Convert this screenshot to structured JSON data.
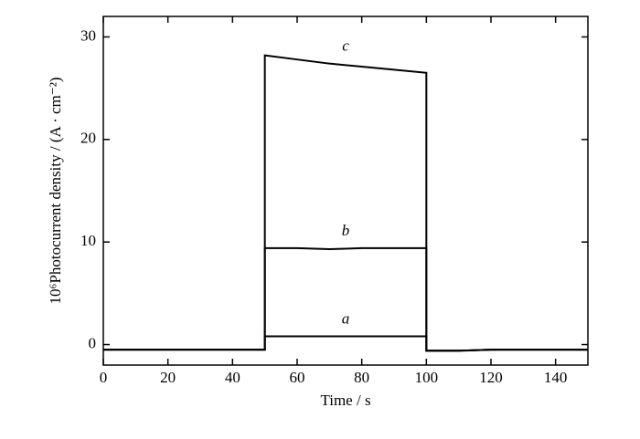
{
  "chart_data": {
    "type": "line",
    "x_label": "Time / s",
    "y_label": "10⁶Photocurrent density / (A · cm⁻²)",
    "x": [
      0,
      10,
      20,
      30,
      40,
      50,
      50,
      60,
      70,
      80,
      90,
      100,
      100,
      110,
      120,
      130,
      140,
      150
    ],
    "series": [
      {
        "name": "a",
        "color": "#000000",
        "values": [
          -0.5,
          -0.5,
          -0.5,
          -0.5,
          -0.5,
          -0.5,
          0.8,
          0.8,
          0.8,
          0.8,
          0.8,
          0.8,
          -0.6,
          -0.6,
          -0.5,
          -0.5,
          -0.5,
          -0.5
        ]
      },
      {
        "name": "b",
        "color": "#000000",
        "values": [
          -0.5,
          -0.5,
          -0.5,
          -0.5,
          -0.5,
          -0.5,
          9.4,
          9.4,
          9.3,
          9.4,
          9.4,
          9.4,
          -0.6,
          -0.6,
          -0.5,
          -0.5,
          -0.5,
          -0.5
        ]
      },
      {
        "name": "c",
        "color": "#000000",
        "values": [
          -0.5,
          -0.5,
          -0.5,
          -0.5,
          -0.5,
          -0.5,
          28.2,
          27.8,
          27.4,
          27.1,
          26.8,
          26.5,
          -0.6,
          -0.6,
          -0.5,
          -0.5,
          -0.5,
          -0.5
        ]
      }
    ],
    "xlim": [
      0,
      150
    ],
    "xticks": [
      0,
      20,
      40,
      60,
      80,
      100,
      120,
      140
    ],
    "ylim": [
      -2,
      32
    ],
    "yticks": [
      0,
      10,
      20,
      30
    ]
  }
}
